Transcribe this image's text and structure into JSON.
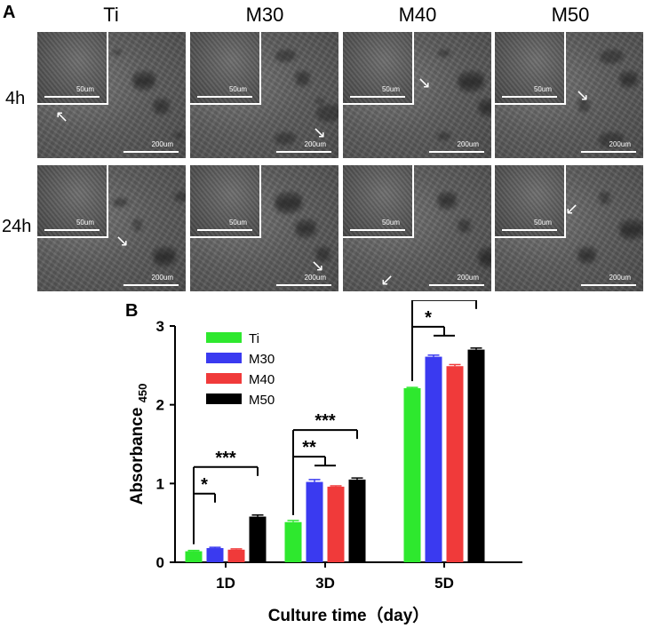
{
  "panel_a": {
    "letter": "A",
    "columns": [
      "Ti",
      "M30",
      "M40",
      "M50"
    ],
    "rows": [
      "4h",
      "24h"
    ],
    "inset_scale": "50um",
    "main_scale": "200um"
  },
  "panel_b": {
    "letter": "B"
  },
  "chart_data": {
    "type": "bar",
    "categories": [
      "1D",
      "3D",
      "5D"
    ],
    "series": [
      {
        "name": "Ti",
        "color": "#2ee82e",
        "values": [
          0.14,
          0.51,
          2.21
        ],
        "errors": [
          0.01,
          0.02,
          0.01
        ]
      },
      {
        "name": "M30",
        "color": "#3a3af0",
        "values": [
          0.18,
          1.02,
          2.61
        ],
        "errors": [
          0.01,
          0.03,
          0.02
        ]
      },
      {
        "name": "M40",
        "color": "#f03a3a",
        "values": [
          0.16,
          0.96,
          2.49
        ],
        "errors": [
          0.01,
          0.01,
          0.02
        ]
      },
      {
        "name": "M50",
        "color": "#000000",
        "values": [
          0.58,
          1.05,
          2.7
        ],
        "errors": [
          0.02,
          0.02,
          0.02
        ]
      }
    ],
    "xlabel": "Culture time（day）",
    "ylabel": "Absorbance",
    "ylabel_sub": "450",
    "ylim": [
      0,
      3
    ],
    "yticks": [
      0,
      1,
      2,
      3
    ],
    "grid": false,
    "legend": "top-left",
    "significance": [
      {
        "category": 0,
        "from": 0,
        "to": [
          1
        ],
        "label": "*"
      },
      {
        "category": 0,
        "from": 0,
        "to": [
          3
        ],
        "label": "***"
      },
      {
        "category": 1,
        "from": 0,
        "to": [
          1,
          2
        ],
        "label": "**"
      },
      {
        "category": 1,
        "from": 0,
        "to": [
          3
        ],
        "label": "***"
      },
      {
        "category": 2,
        "from": 0,
        "to": [
          1,
          2
        ],
        "label": "*"
      },
      {
        "category": 2,
        "from": 0,
        "to": [
          3
        ],
        "label": "**"
      }
    ]
  }
}
